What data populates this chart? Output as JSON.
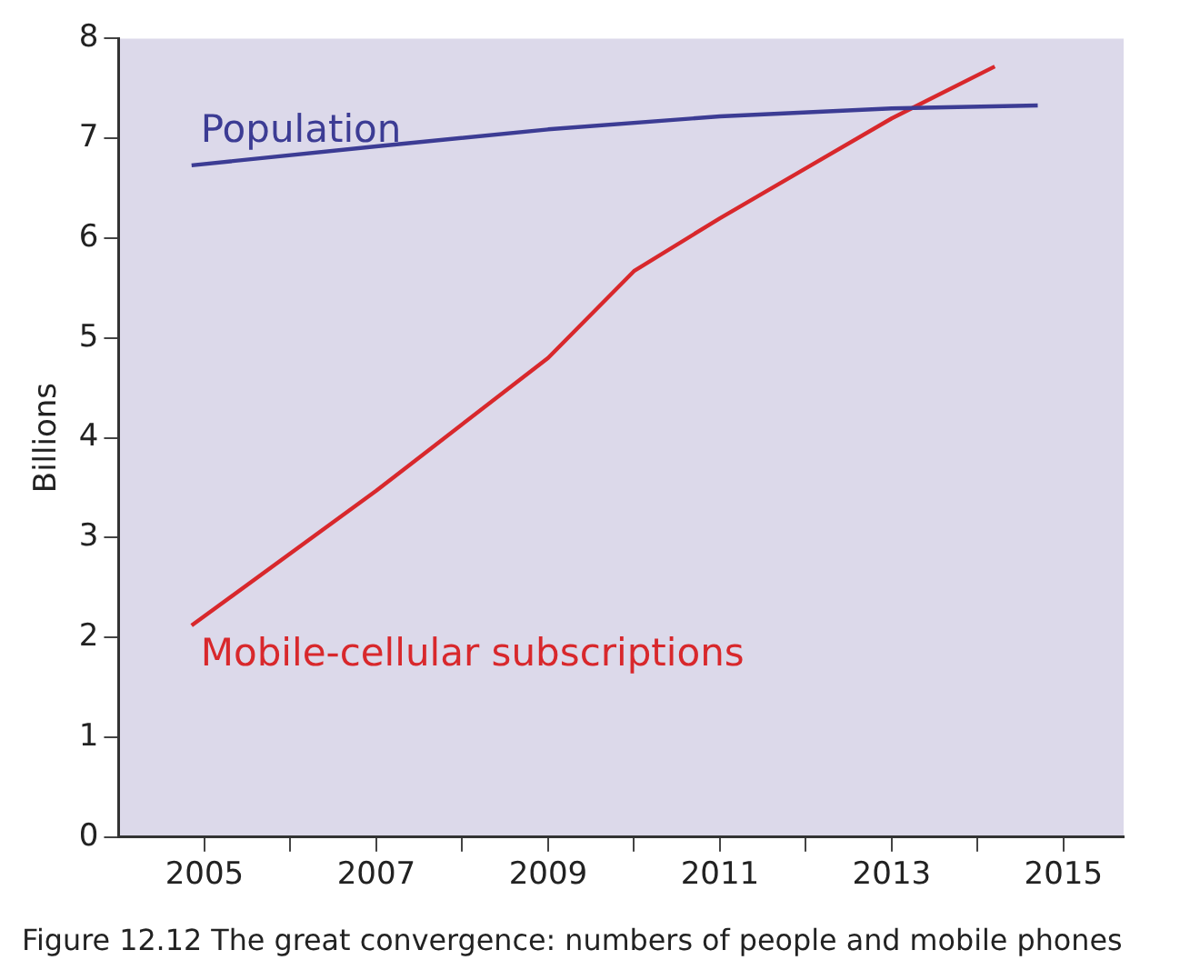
{
  "chart_data": {
    "type": "line",
    "title": "Figure 12.12 The great convergence: numbers of people and mobile phones",
    "ylabel": "Billions",
    "series": [
      {
        "name": "Population",
        "color": "#3c3c94",
        "x": [
          2004.85,
          2007,
          2009,
          2011,
          2013,
          2014.7
        ],
        "values": [
          6.73,
          6.92,
          7.09,
          7.22,
          7.3,
          7.33
        ]
      },
      {
        "name": "Mobile-cellular subscriptions",
        "color": "#d8282c",
        "x": [
          2004.85,
          2007,
          2009,
          2010,
          2011,
          2012,
          2013,
          2014.2
        ],
        "values": [
          2.12,
          3.47,
          4.8,
          5.67,
          6.2,
          6.7,
          7.2,
          7.72
        ]
      }
    ],
    "xlim": [
      2004,
      2015.7
    ],
    "xticks": [
      2005,
      {
        "value": 2006,
        "label": null
      },
      2007,
      {
        "value": 2008,
        "label": null
      },
      2009,
      {
        "value": 2010,
        "label": null
      },
      2011,
      {
        "value": 2012,
        "label": null
      },
      2013,
      {
        "value": 2014,
        "label": null
      },
      2015
    ],
    "ylim": [
      0,
      8
    ],
    "yticks": [
      0,
      1,
      2,
      3,
      4,
      5,
      6,
      7,
      8
    ],
    "grid": false,
    "legend": false,
    "marker": "none",
    "line_style": "solid"
  }
}
